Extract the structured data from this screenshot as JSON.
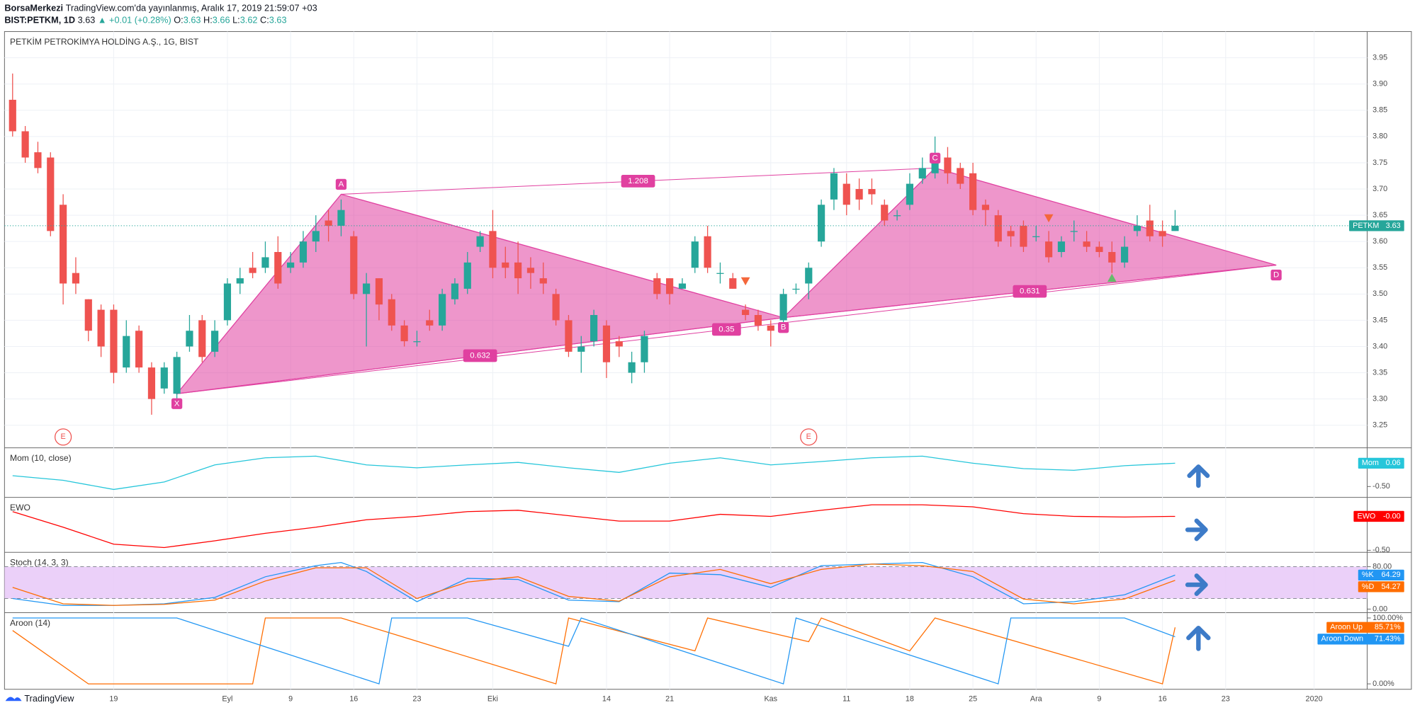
{
  "header": {
    "author": "BorsaMerkezi",
    "published": "TradingView.com'da yayınlanmış, Aralık 17, 2019 21:59:07 +03",
    "symbol": "BIST:PETKM, 1D",
    "last": "3.63",
    "change": "▲ +0.01 (+0.28%)",
    "ohlc": [
      {
        "key": "O:",
        "value": "3.63"
      },
      {
        "key": "H:",
        "value": "3.66"
      },
      {
        "key": "L:",
        "value": "3.62"
      },
      {
        "key": "C:",
        "value": "3.63"
      }
    ]
  },
  "footer": "TradingView",
  "chart_data": [
    {
      "type": "candlestick",
      "title": "PETKİM PETROKİMYA HOLDİNG A.Ş., 1G, BIST",
      "xlim": [
        -0.64,
        107.2
      ],
      "ylim": [
        3.207,
        4.0
      ],
      "yticks": [
        3.25,
        {
          "value": 3.3,
          "label": "3.30"
        },
        3.35,
        {
          "value": 3.4,
          "label": "3.40"
        },
        3.45,
        {
          "value": 3.5,
          "label": "3.50"
        },
        3.55,
        {
          "value": 3.6,
          "label": "3.60"
        },
        3.65,
        {
          "value": 3.7,
          "label": "3.70"
        },
        3.75,
        {
          "value": 3.8,
          "label": "3.80"
        },
        3.85,
        {
          "value": 3.9,
          "label": "3.90"
        },
        3.95
      ],
      "grid": true,
      "up_color": "#26a69a",
      "down_color": "#ef5350",
      "open": [
        3.87,
        3.81,
        3.77,
        3.76,
        3.67,
        3.54,
        3.49,
        3.47,
        3.47,
        3.36,
        3.43,
        3.36,
        3.32,
        3.31,
        3.4,
        3.45,
        3.39,
        3.45,
        3.52,
        3.55,
        3.55,
        3.58,
        3.55,
        3.56,
        3.6,
        3.64,
        3.63,
        3.61,
        3.5,
        3.53,
        3.49,
        3.44,
        3.41,
        3.45,
        3.44,
        3.49,
        3.51,
        3.59,
        3.62,
        3.56,
        3.56,
        3.55,
        3.53,
        3.5,
        3.45,
        3.39,
        3.41,
        3.44,
        3.41,
        3.35,
        3.37,
        3.53,
        3.53,
        3.51,
        3.55,
        3.61,
        3.54,
        3.53,
        3.47,
        3.46,
        3.44,
        3.45,
        3.51,
        3.52,
        3.6,
        3.68,
        3.71,
        3.7,
        3.7,
        3.67,
        3.65,
        3.67,
        3.72,
        3.73,
        3.76,
        3.74,
        3.73,
        3.67,
        3.65,
        3.62,
        3.63,
        3.61,
        3.6,
        3.58,
        3.62,
        3.6,
        3.59,
        3.58,
        3.56,
        3.62,
        3.64,
        3.62,
        3.62
      ],
      "high": [
        3.92,
        3.82,
        3.79,
        3.77,
        3.69,
        3.57,
        3.49,
        3.48,
        3.48,
        3.45,
        3.44,
        3.37,
        3.37,
        3.39,
        3.46,
        3.46,
        3.45,
        3.53,
        3.55,
        3.58,
        3.6,
        3.61,
        3.58,
        3.62,
        3.65,
        3.66,
        3.68,
        3.62,
        3.54,
        3.53,
        3.5,
        3.45,
        3.43,
        3.47,
        3.51,
        3.53,
        3.58,
        3.62,
        3.66,
        3.59,
        3.6,
        3.57,
        3.56,
        3.51,
        3.46,
        3.42,
        3.47,
        3.45,
        3.42,
        3.39,
        3.43,
        3.54,
        3.53,
        3.53,
        3.61,
        3.63,
        3.56,
        3.54,
        3.48,
        3.47,
        3.45,
        3.51,
        3.52,
        3.56,
        3.68,
        3.74,
        3.73,
        3.72,
        3.72,
        3.68,
        3.66,
        3.73,
        3.76,
        3.8,
        3.78,
        3.75,
        3.75,
        3.68,
        3.66,
        3.63,
        3.64,
        3.63,
        3.62,
        3.61,
        3.64,
        3.62,
        3.6,
        3.6,
        3.61,
        3.65,
        3.67,
        3.64,
        3.66
      ],
      "low": [
        3.8,
        3.75,
        3.73,
        3.61,
        3.48,
        3.5,
        3.41,
        3.38,
        3.33,
        3.35,
        3.35,
        3.27,
        3.31,
        3.3,
        3.39,
        3.37,
        3.38,
        3.44,
        3.5,
        3.53,
        3.54,
        3.51,
        3.54,
        3.55,
        3.58,
        3.6,
        3.61,
        3.49,
        3.4,
        3.45,
        3.43,
        3.4,
        3.4,
        3.43,
        3.43,
        3.48,
        3.5,
        3.58,
        3.53,
        3.53,
        3.5,
        3.51,
        3.5,
        3.44,
        3.38,
        3.35,
        3.4,
        3.34,
        3.38,
        3.33,
        3.35,
        3.49,
        3.48,
        3.51,
        3.54,
        3.54,
        3.52,
        3.51,
        3.45,
        3.43,
        3.4,
        3.44,
        3.5,
        3.49,
        3.59,
        3.66,
        3.65,
        3.66,
        3.67,
        3.63,
        3.64,
        3.66,
        3.71,
        3.72,
        3.71,
        3.7,
        3.65,
        3.63,
        3.59,
        3.59,
        3.58,
        3.6,
        3.56,
        3.57,
        3.6,
        3.58,
        3.57,
        3.54,
        3.55,
        3.61,
        3.6,
        3.59,
        3.62
      ],
      "close": [
        3.81,
        3.76,
        3.74,
        3.62,
        3.52,
        3.52,
        3.43,
        3.4,
        3.35,
        3.42,
        3.36,
        3.3,
        3.36,
        3.38,
        3.43,
        3.38,
        3.43,
        3.52,
        3.53,
        3.54,
        3.57,
        3.52,
        3.56,
        3.6,
        3.62,
        3.63,
        3.66,
        3.5,
        3.52,
        3.48,
        3.44,
        3.41,
        3.41,
        3.44,
        3.5,
        3.52,
        3.56,
        3.61,
        3.55,
        3.55,
        3.53,
        3.54,
        3.52,
        3.45,
        3.39,
        3.4,
        3.46,
        3.37,
        3.4,
        3.37,
        3.42,
        3.5,
        3.5,
        3.52,
        3.6,
        3.55,
        3.54,
        3.51,
        3.46,
        3.44,
        3.43,
        3.5,
        3.51,
        3.55,
        3.67,
        3.73,
        3.67,
        3.68,
        3.69,
        3.64,
        3.65,
        3.71,
        3.74,
        3.76,
        3.73,
        3.71,
        3.66,
        3.66,
        3.6,
        3.61,
        3.59,
        3.61,
        3.57,
        3.6,
        3.62,
        3.59,
        3.58,
        3.56,
        3.59,
        3.63,
        3.61,
        3.61,
        3.63
      ],
      "pattern": {
        "color": "#e040a0",
        "points": [
          {
            "label": "X",
            "x": 13,
            "y": 3.31
          },
          {
            "label": "A",
            "x": 26,
            "y": 3.69
          },
          {
            "label": "B",
            "x": 61,
            "y": 3.455
          },
          {
            "label": "C",
            "x": 73,
            "y": 3.74
          },
          {
            "label": "D",
            "x": 100,
            "y": 3.555
          }
        ],
        "ratios": [
          {
            "label": 1.208,
            "from": 1,
            "to": 3
          },
          {
            "label": 0.632,
            "from": 0,
            "to": 2
          },
          {
            "label": 0.35,
            "from": 0,
            "to": 4
          },
          {
            "label": 0.631,
            "from": 2,
            "to": 4
          }
        ]
      },
      "events": [
        {
          "x": 4,
          "label": "E"
        },
        {
          "x": 63,
          "label": "E"
        }
      ],
      "signals": [
        {
          "x": 58,
          "y": 3.525,
          "dir": "down",
          "color": "#f4673b"
        },
        {
          "x": 82,
          "y": 3.645,
          "dir": "down",
          "color": "#f4673b"
        },
        {
          "x": 87,
          "y": 3.53,
          "dir": "up",
          "color": "#66bb6a"
        }
      ],
      "last_price": {
        "name": "PETKM",
        "value": 3.63,
        "color": "#26a69a"
      }
    },
    {
      "type": "line",
      "title": "Mom (10, close)",
      "xlim": [
        -0.64,
        107.2
      ],
      "ylim": [
        -0.76,
        0.43
      ],
      "yticks": [
        {
          "value": -0.5,
          "label": "-0.50"
        }
      ],
      "series": [
        {
          "name": "Mom",
          "color": "#26c6da",
          "x": [
            0,
            4,
            8,
            12,
            16,
            20,
            24,
            28,
            32,
            36,
            40,
            44,
            48,
            52,
            56,
            60,
            64,
            68,
            72,
            76,
            80,
            84,
            88,
            92
          ],
          "values": [
            -0.24,
            -0.35,
            -0.57,
            -0.39,
            0.02,
            0.19,
            0.23,
            0.02,
            -0.05,
            0.02,
            0.08,
            -0.05,
            -0.16,
            0.06,
            0.19,
            0.02,
            0.1,
            0.19,
            0.23,
            0.06,
            -0.07,
            -0.11,
            0,
            0.06
          ]
        }
      ]
    },
    {
      "type": "line",
      "title": "EWO",
      "xlim": [
        -0.64,
        107.2
      ],
      "ylim": [
        -0.53,
        0.28
      ],
      "yticks": [
        {
          "value": -0.5,
          "label": "-0.50"
        }
      ],
      "series": [
        {
          "name": "EWO",
          "color": "#ff0000",
          "x": [
            0,
            4,
            8,
            12,
            16,
            20,
            24,
            28,
            32,
            36,
            40,
            44,
            48,
            52,
            56,
            60,
            64,
            68,
            72,
            76,
            80,
            84,
            88,
            92
          ],
          "values": [
            0.07,
            -0.16,
            -0.41,
            -0.46,
            -0.36,
            -0.25,
            -0.16,
            -0.05,
            0,
            0.07,
            0.09,
            0.01,
            -0.07,
            -0.07,
            0.03,
            0,
            0.09,
            0.17,
            0.17,
            0.14,
            0.04,
            0,
            -0.01,
            0
          ],
          "value_label": "-0.00"
        }
      ]
    },
    {
      "type": "line",
      "title": "Stoch (14, 3, 3)",
      "xlim": [
        -0.64,
        107.2
      ],
      "ylim": [
        -6.8,
        107.2
      ],
      "yticks": [
        {
          "value": 80,
          "label": "80.00"
        },
        {
          "value": 0,
          "label": "0.00"
        }
      ],
      "bands": [
        20,
        80
      ],
      "band_color": "#e8c8f8",
      "series": [
        {
          "name": "%K",
          "color": "#2196f3",
          "x": [
            0,
            4,
            8,
            12,
            16,
            20,
            24,
            26,
            28,
            32,
            36,
            40,
            44,
            48,
            52,
            56,
            60,
            64,
            68,
            72,
            76,
            80,
            84,
            88,
            92
          ],
          "values": [
            20,
            7,
            7,
            10,
            22,
            61,
            82,
            88,
            71,
            14,
            58,
            56,
            17,
            14,
            68,
            65,
            41,
            82,
            85,
            88,
            61,
            10,
            14,
            27,
            64.29
          ]
        },
        {
          "name": "%D",
          "color": "#ff6d00",
          "x": [
            0,
            4,
            8,
            12,
            16,
            20,
            24,
            28,
            32,
            36,
            40,
            44,
            48,
            52,
            56,
            60,
            64,
            68,
            72,
            76,
            80,
            84,
            88,
            92
          ],
          "values": [
            41,
            10,
            7,
            9,
            17,
            53,
            78,
            78,
            20,
            51,
            61,
            24,
            15,
            61,
            75,
            48,
            75,
            85,
            82,
            71,
            19,
            10,
            19,
            54.27
          ]
        }
      ]
    },
    {
      "type": "line",
      "title": "Aroon (14)",
      "xlim": [
        -0.64,
        107.2
      ],
      "ylim": [
        -8.2,
        108
      ],
      "yticks": [
        {
          "value": 100,
          "label": "100.00%"
        },
        {
          "value": 0,
          "label": "0.00%"
        }
      ],
      "xticks": [
        {
          "value": 8,
          "label": "19"
        },
        {
          "value": 17,
          "label": "Eyl"
        },
        {
          "value": 22,
          "label": "9"
        },
        {
          "value": 27,
          "label": "16"
        },
        {
          "value": 32,
          "label": "23"
        },
        {
          "value": 38,
          "label": "Eki"
        },
        {
          "value": 47,
          "label": "14"
        },
        {
          "value": 52,
          "label": "21"
        },
        {
          "value": 60,
          "label": "Kas"
        },
        {
          "value": 66,
          "label": "11"
        },
        {
          "value": 71,
          "label": "18"
        },
        {
          "value": 76,
          "label": "25"
        },
        {
          "value": 81,
          "label": "Ara"
        },
        {
          "value": 86,
          "label": "9"
        },
        {
          "value": 91,
          "label": "16"
        },
        {
          "value": 96,
          "label": "23"
        },
        {
          "value": 103,
          "label": "2020"
        }
      ],
      "series": [
        {
          "name": "Aroon Up",
          "color": "#ff6d00",
          "x": [
            0,
            6,
            19,
            20,
            26,
            43,
            44,
            54,
            55,
            63,
            64,
            71,
            73,
            91,
            92
          ],
          "values": [
            81,
            0,
            0,
            100,
            100,
            0,
            100,
            50,
            100,
            64,
            100,
            50,
            100,
            0,
            85.71
          ],
          "value_label": "85.71%"
        },
        {
          "name": "Aroon Down",
          "color": "#2196f3",
          "x": [
            0,
            13,
            29,
            30,
            36,
            44,
            45,
            61,
            62,
            78,
            79,
            88,
            92
          ],
          "values": [
            100,
            100,
            0,
            100,
            100,
            57,
            100,
            0,
            100,
            0,
            100,
            100,
            71.43
          ],
          "value_label": "71.43%"
        }
      ]
    }
  ]
}
